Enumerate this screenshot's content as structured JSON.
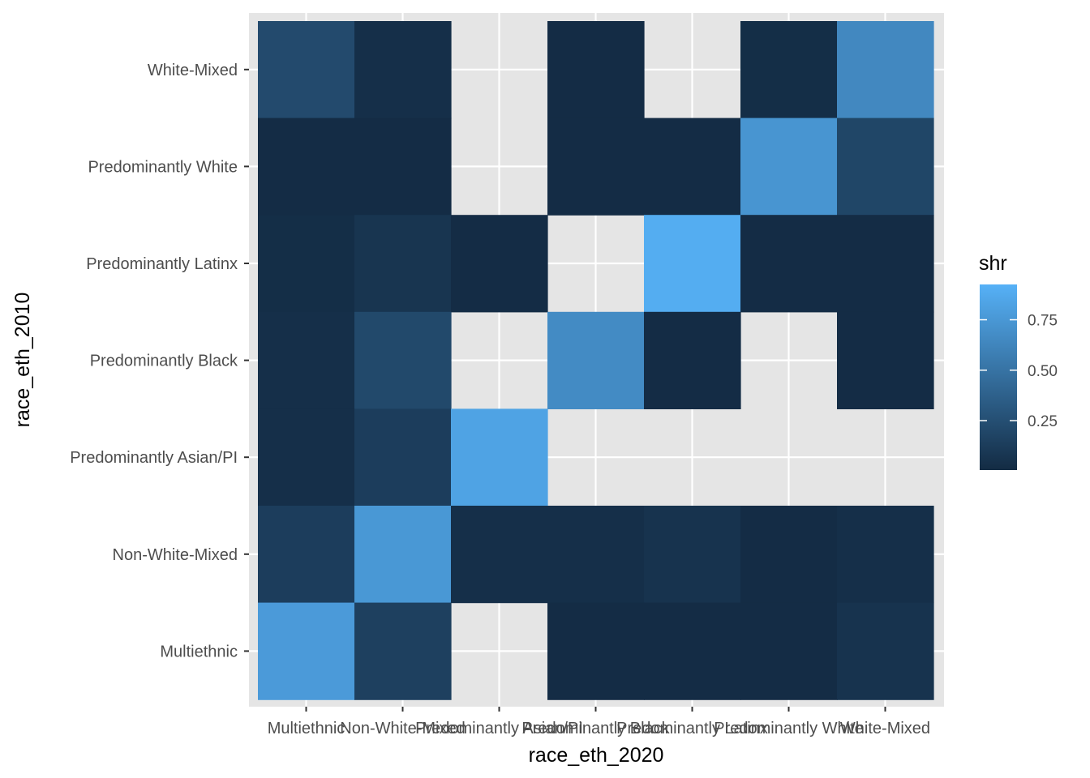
{
  "chart_data": {
    "type": "heatmap",
    "title": "",
    "xlabel": "race_eth_2020",
    "ylabel": "race_eth_2010",
    "x_categories": [
      "Multiethnic",
      "Non-White-Mixed",
      "Predominantly Asian/PI",
      "Predominantly Black",
      "Predominantly Latinx",
      "Predominantly White",
      "White-Mixed"
    ],
    "y_categories": [
      "Multiethnic",
      "Non-White-Mixed",
      "Predominantly Asian/PI",
      "Predominantly Black",
      "Predominantly Latinx",
      "Predominantly White",
      "White-Mixed"
    ],
    "value_name": "shr",
    "cells": [
      {
        "y": "White-Mixed",
        "x": "Multiethnic",
        "value": 0.22
      },
      {
        "y": "White-Mixed",
        "x": "Non-White-Mixed",
        "value": 0.03
      },
      {
        "y": "White-Mixed",
        "x": "Predominantly Black",
        "value": 0.01
      },
      {
        "y": "White-Mixed",
        "x": "Predominantly White",
        "value": 0.02
      },
      {
        "y": "White-Mixed",
        "x": "White-Mixed",
        "value": 0.66
      },
      {
        "y": "Predominantly White",
        "x": "Multiethnic",
        "value": 0.01
      },
      {
        "y": "Predominantly White",
        "x": "Non-White-Mixed",
        "value": 0.01
      },
      {
        "y": "Predominantly White",
        "x": "Predominantly Black",
        "value": 0.01
      },
      {
        "y": "Predominantly White",
        "x": "Predominantly Latinx",
        "value": 0.01
      },
      {
        "y": "Predominantly White",
        "x": "Predominantly White",
        "value": 0.75
      },
      {
        "y": "Predominantly White",
        "x": "White-Mixed",
        "value": 0.19
      },
      {
        "y": "Predominantly Latinx",
        "x": "Multiethnic",
        "value": 0.02
      },
      {
        "y": "Predominantly Latinx",
        "x": "Non-White-Mixed",
        "value": 0.07
      },
      {
        "y": "Predominantly Latinx",
        "x": "Predominantly Asian/PI",
        "value": 0.01
      },
      {
        "y": "Predominantly Latinx",
        "x": "Predominantly Latinx",
        "value": 0.92
      },
      {
        "y": "Predominantly Latinx",
        "x": "Predominantly White",
        "value": 0.01
      },
      {
        "y": "Predominantly Latinx",
        "x": "White-Mixed",
        "value": 0.01
      },
      {
        "y": "Predominantly Black",
        "x": "Multiethnic",
        "value": 0.03
      },
      {
        "y": "Predominantly Black",
        "x": "Non-White-Mixed",
        "value": 0.21
      },
      {
        "y": "Predominantly Black",
        "x": "Predominantly Black",
        "value": 0.68
      },
      {
        "y": "Predominantly Black",
        "x": "Predominantly Latinx",
        "value": 0.01
      },
      {
        "y": "Predominantly Black",
        "x": "White-Mixed",
        "value": 0.01
      },
      {
        "y": "Predominantly Asian/PI",
        "x": "Multiethnic",
        "value": 0.03
      },
      {
        "y": "Predominantly Asian/PI",
        "x": "Non-White-Mixed",
        "value": 0.13
      },
      {
        "y": "Predominantly Asian/PI",
        "x": "Predominantly Asian/PI",
        "value": 0.85
      },
      {
        "y": "Non-White-Mixed",
        "x": "Multiethnic",
        "value": 0.13
      },
      {
        "y": "Non-White-Mixed",
        "x": "Non-White-Mixed",
        "value": 0.77
      },
      {
        "y": "Non-White-Mixed",
        "x": "Predominantly Asian/PI",
        "value": 0.03
      },
      {
        "y": "Non-White-Mixed",
        "x": "Predominantly Black",
        "value": 0.03
      },
      {
        "y": "Non-White-Mixed",
        "x": "Predominantly Latinx",
        "value": 0.06
      },
      {
        "y": "Non-White-Mixed",
        "x": "Predominantly White",
        "value": 0.01
      },
      {
        "y": "Non-White-Mixed",
        "x": "White-Mixed",
        "value": 0.03
      },
      {
        "y": "Multiethnic",
        "x": "Multiethnic",
        "value": 0.79
      },
      {
        "y": "Multiethnic",
        "x": "Non-White-Mixed",
        "value": 0.15
      },
      {
        "y": "Multiethnic",
        "x": "Predominantly Black",
        "value": 0.01
      },
      {
        "y": "Multiethnic",
        "x": "Predominantly Latinx",
        "value": 0.01
      },
      {
        "y": "Multiethnic",
        "x": "Predominantly White",
        "value": 0.01
      },
      {
        "y": "Multiethnic",
        "x": "White-Mixed",
        "value": 0.06
      }
    ],
    "color_scale": {
      "low_color": "#132B43",
      "high_color": "#56B1F7",
      "min": 0.0,
      "max": 0.95,
      "breaks": [
        0.25,
        0.5,
        0.75
      ],
      "break_labels": [
        "0.25",
        "0.50",
        "0.75"
      ]
    },
    "grid": true,
    "legend_position": "right",
    "panel_color": "#E5E5E5",
    "gridline_color": "#FFFFFF"
  }
}
